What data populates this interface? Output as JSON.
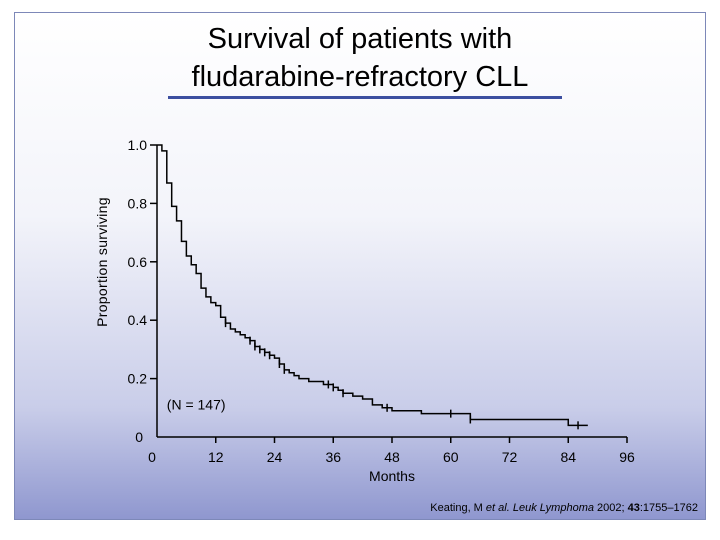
{
  "title_line1": "Survival of patients with",
  "title_line2": "fludarabine-refractory CLL",
  "citation": {
    "author": "Keating, M",
    "etal": "et al.",
    "journal": "Leuk Lymphoma",
    "year": "2002;",
    "volume": "43",
    "pages": ":1755–1762"
  },
  "chart_data": {
    "type": "line",
    "subtype": "kaplan-meier",
    "title": "Survival of patients with fludarabine-refractory CLL",
    "xlabel": "Months",
    "ylabel": "Proportion surviving",
    "annotation": "(N = 147)",
    "xlim": [
      0,
      96
    ],
    "ylim": [
      0,
      1.0
    ],
    "xticks": [
      0,
      12,
      24,
      36,
      48,
      60,
      72,
      84,
      96
    ],
    "yticks": [
      0,
      0.2,
      0.4,
      0.6,
      0.8,
      1.0
    ],
    "ytick_labels": [
      "0",
      "0.2",
      "0.4",
      "0.6",
      "0.8",
      "1.0"
    ],
    "series": [
      {
        "values_x": [
          0,
          1,
          2,
          3,
          4,
          5,
          6,
          7,
          8,
          9,
          10,
          11,
          12,
          13,
          14,
          15,
          16,
          17,
          18,
          19,
          20,
          21,
          22,
          23,
          24,
          25,
          26,
          27,
          28,
          29,
          30,
          31,
          32,
          34,
          36,
          37,
          38,
          40,
          42,
          44,
          46,
          48,
          54,
          60,
          64,
          84
        ],
        "values_y": [
          1.0,
          0.98,
          0.87,
          0.79,
          0.74,
          0.67,
          0.62,
          0.59,
          0.56,
          0.51,
          0.48,
          0.46,
          0.45,
          0.41,
          0.39,
          0.37,
          0.36,
          0.35,
          0.34,
          0.33,
          0.31,
          0.3,
          0.29,
          0.28,
          0.27,
          0.25,
          0.23,
          0.22,
          0.21,
          0.2,
          0.2,
          0.19,
          0.19,
          0.18,
          0.17,
          0.16,
          0.15,
          0.14,
          0.13,
          0.11,
          0.1,
          0.09,
          0.08,
          0.08,
          0.06,
          0.04
        ],
        "censor_x": [
          14,
          19,
          20,
          21,
          22,
          23,
          25,
          26,
          35,
          36,
          38,
          47,
          60,
          64,
          86
        ]
      }
    ]
  }
}
